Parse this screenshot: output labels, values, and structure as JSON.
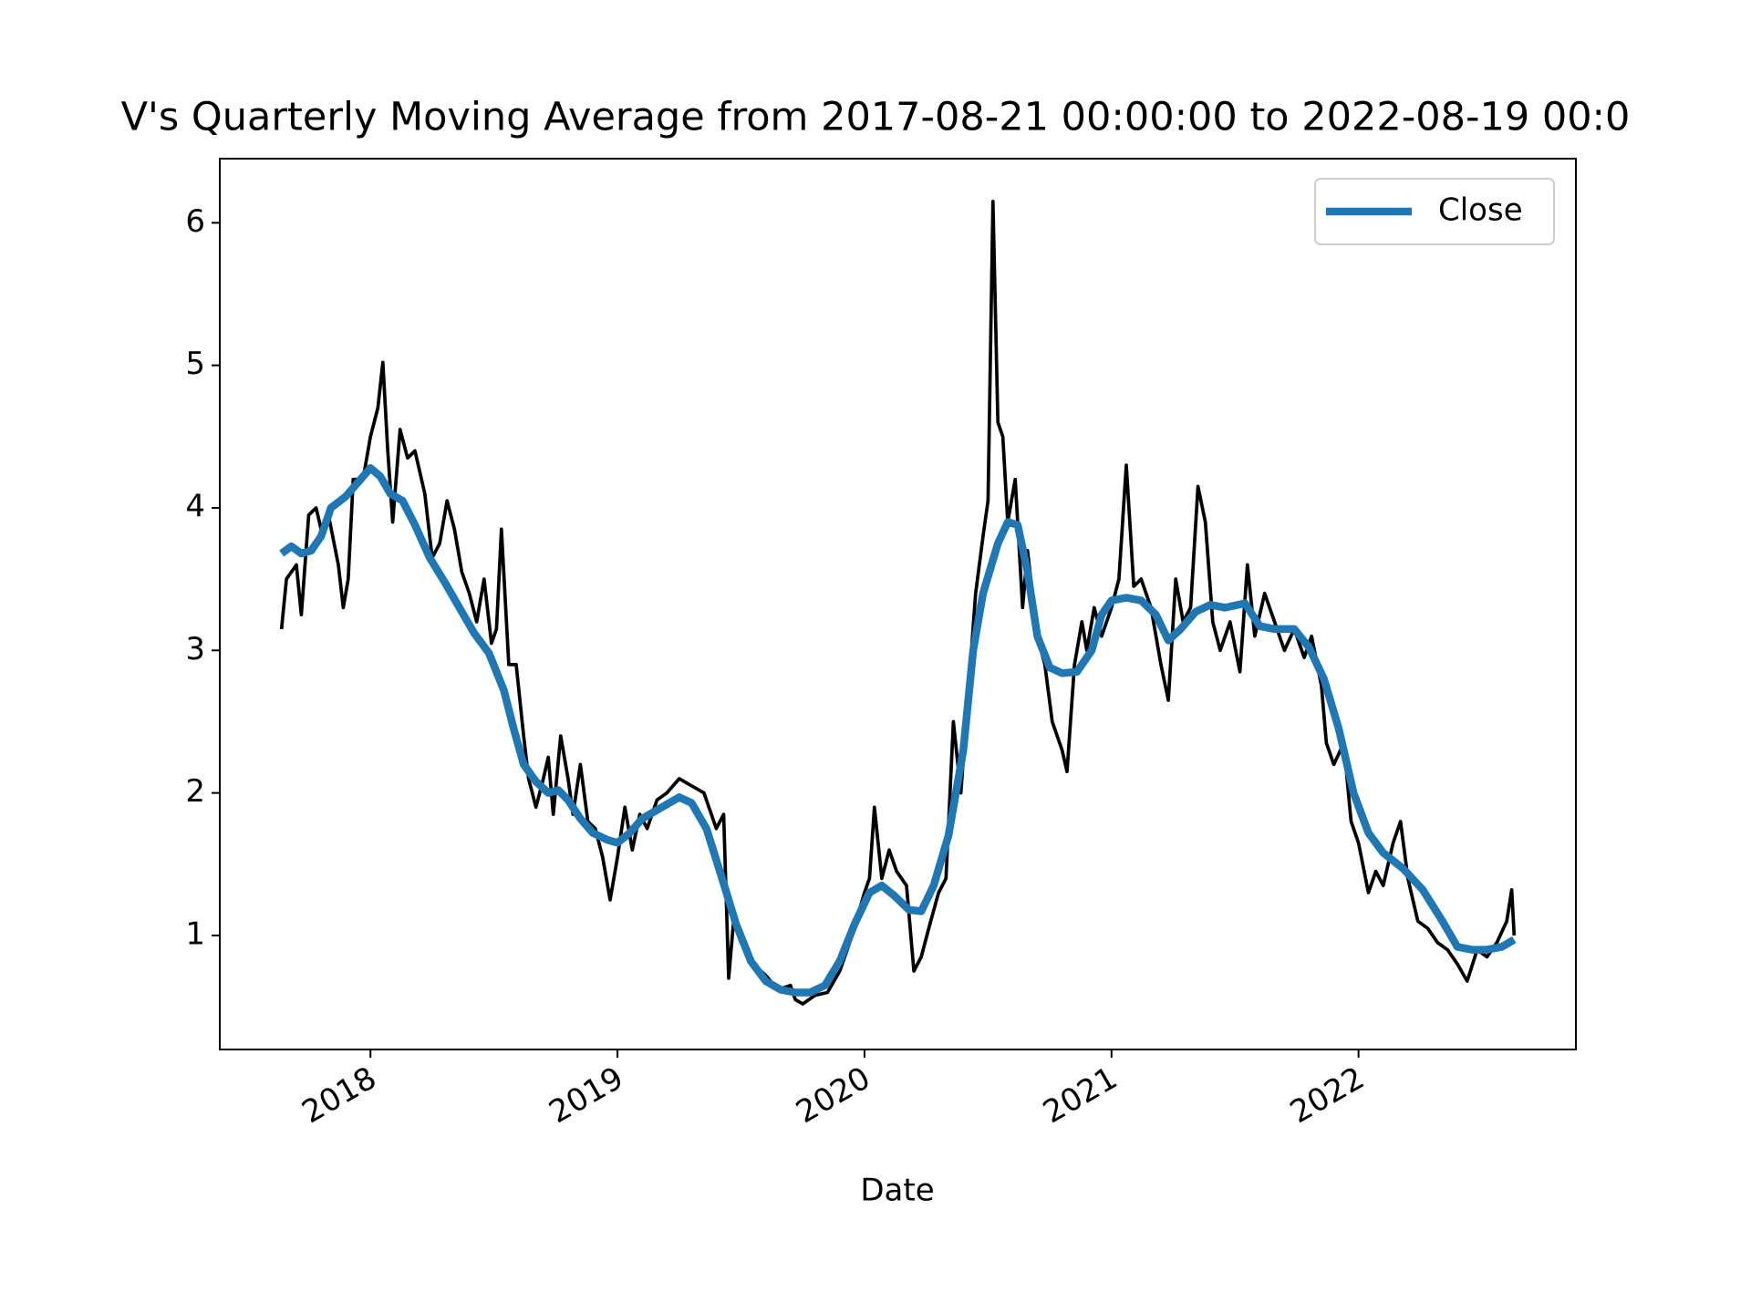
{
  "chart_data": {
    "type": "line",
    "title": "V's Quarterly Moving Average from 2017-08-21 00:00:00 to 2022-08-19 00:0",
    "xlabel": "Date",
    "xlim": [
      2017.39,
      2022.88
    ],
    "xticks": [
      2018,
      2019,
      2020,
      2021,
      2022
    ],
    "ylim": [
      0.2,
      6.45
    ],
    "yticks": [
      1,
      2,
      3,
      4,
      5,
      6
    ],
    "legend": "upper right",
    "series": [
      {
        "color": "#000000",
        "x": [
          2017.64,
          2017.66,
          2017.7,
          2017.72,
          2017.75,
          2017.78,
          2017.8,
          2017.83,
          2017.87,
          2017.89,
          2017.91,
          2017.93,
          2017.97,
          2018.0,
          2018.03,
          2018.05,
          2018.07,
          2018.09,
          2018.12,
          2018.15,
          2018.18,
          2018.22,
          2018.25,
          2018.28,
          2018.31,
          2018.34,
          2018.37,
          2018.4,
          2018.43,
          2018.46,
          2018.49,
          2018.51,
          2018.53,
          2018.56,
          2018.59,
          2018.62,
          2018.64,
          2018.67,
          2018.7,
          2018.72,
          2018.74,
          2018.77,
          2018.8,
          2018.82,
          2018.85,
          2018.88,
          2018.91,
          2018.94,
          2018.97,
          2019.0,
          2019.03,
          2019.06,
          2019.09,
          2019.12,
          2019.16,
          2019.2,
          2019.25,
          2019.3,
          2019.35,
          2019.4,
          2019.43,
          2019.45,
          2019.47,
          2019.5,
          2019.55,
          2019.6,
          2019.65,
          2019.7,
          2019.72,
          2019.75,
          2019.8,
          2019.85,
          2019.9,
          2019.95,
          2020.0,
          2020.02,
          2020.04,
          2020.07,
          2020.1,
          2020.13,
          2020.17,
          2020.2,
          2020.23,
          2020.26,
          2020.3,
          2020.33,
          2020.36,
          2020.39,
          2020.42,
          2020.45,
          2020.48,
          2020.5,
          2020.52,
          2020.54,
          2020.56,
          2020.58,
          2020.61,
          2020.64,
          2020.66,
          2020.7,
          2020.73,
          2020.76,
          2020.8,
          2020.82,
          2020.85,
          2020.88,
          2020.9,
          2020.93,
          2020.96,
          2021.0,
          2021.03,
          2021.06,
          2021.09,
          2021.12,
          2021.16,
          2021.2,
          2021.23,
          2021.26,
          2021.29,
          2021.32,
          2021.35,
          2021.38,
          2021.41,
          2021.44,
          2021.48,
          2021.52,
          2021.55,
          2021.58,
          2021.62,
          2021.66,
          2021.7,
          2021.74,
          2021.78,
          2021.81,
          2021.85,
          2021.87,
          2021.9,
          2021.94,
          2021.97,
          2022.0,
          2022.04,
          2022.07,
          2022.1,
          2022.14,
          2022.17,
          2022.2,
          2022.24,
          2022.28,
          2022.32,
          2022.36,
          2022.4,
          2022.44,
          2022.48,
          2022.52,
          2022.56,
          2022.6,
          2022.62,
          2022.63
        ],
        "values": [
          3.15,
          3.5,
          3.6,
          3.25,
          3.95,
          4.0,
          3.85,
          3.95,
          3.6,
          3.3,
          3.5,
          4.2,
          4.2,
          4.5,
          4.7,
          5.02,
          4.4,
          3.9,
          4.55,
          4.35,
          4.4,
          4.1,
          3.65,
          3.75,
          4.05,
          3.85,
          3.55,
          3.4,
          3.2,
          3.5,
          3.05,
          3.15,
          3.85,
          2.9,
          2.9,
          2.4,
          2.1,
          1.9,
          2.1,
          2.25,
          1.85,
          2.4,
          2.1,
          1.85,
          2.2,
          1.8,
          1.75,
          1.55,
          1.25,
          1.55,
          1.9,
          1.6,
          1.85,
          1.75,
          1.95,
          2.0,
          2.1,
          2.05,
          2.0,
          1.75,
          1.85,
          0.7,
          1.1,
          0.95,
          0.8,
          0.72,
          0.62,
          0.65,
          0.55,
          0.52,
          0.58,
          0.6,
          0.75,
          1.0,
          1.3,
          1.4,
          1.9,
          1.4,
          1.6,
          1.45,
          1.35,
          0.75,
          0.85,
          1.05,
          1.3,
          1.4,
          2.5,
          2.0,
          2.7,
          3.4,
          3.8,
          4.05,
          6.15,
          4.6,
          4.5,
          3.9,
          4.2,
          3.3,
          3.7,
          3.1,
          2.9,
          2.5,
          2.3,
          2.15,
          2.9,
          3.2,
          3.0,
          3.3,
          3.1,
          3.3,
          3.5,
          4.3,
          3.45,
          3.5,
          3.3,
          2.9,
          2.65,
          3.5,
          3.2,
          3.3,
          4.15,
          3.9,
          3.2,
          3.0,
          3.2,
          2.85,
          3.6,
          3.1,
          3.4,
          3.2,
          3.0,
          3.15,
          2.95,
          3.1,
          2.75,
          2.35,
          2.2,
          2.35,
          1.8,
          1.65,
          1.3,
          1.45,
          1.35,
          1.65,
          1.8,
          1.4,
          1.1,
          1.05,
          0.95,
          0.9,
          0.8,
          0.68,
          0.9,
          0.85,
          0.95,
          1.1,
          1.32,
          1.0
        ]
      },
      {
        "name": "Close",
        "color": "#1f77b4",
        "x": [
          2017.64,
          2017.68,
          2017.72,
          2017.76,
          2017.8,
          2017.84,
          2017.9,
          2017.96,
          2018.0,
          2018.04,
          2018.08,
          2018.13,
          2018.18,
          2018.24,
          2018.3,
          2018.36,
          2018.42,
          2018.48,
          2018.54,
          2018.58,
          2018.62,
          2018.67,
          2018.72,
          2018.76,
          2018.8,
          2018.85,
          2018.9,
          2018.96,
          2019.0,
          2019.05,
          2019.1,
          2019.18,
          2019.25,
          2019.3,
          2019.36,
          2019.42,
          2019.48,
          2019.54,
          2019.6,
          2019.66,
          2019.72,
          2019.78,
          2019.84,
          2019.9,
          2019.96,
          2020.02,
          2020.07,
          2020.12,
          2020.18,
          2020.23,
          2020.28,
          2020.34,
          2020.4,
          2020.44,
          2020.48,
          2020.54,
          2020.58,
          2020.62,
          2020.66,
          2020.7,
          2020.75,
          2020.8,
          2020.86,
          2020.92,
          2020.96,
          2021.0,
          2021.06,
          2021.12,
          2021.18,
          2021.23,
          2021.28,
          2021.34,
          2021.4,
          2021.46,
          2021.54,
          2021.6,
          2021.66,
          2021.74,
          2021.8,
          2021.86,
          2021.92,
          2021.98,
          2022.04,
          2022.1,
          2022.18,
          2022.26,
          2022.34,
          2022.4,
          2022.46,
          2022.52,
          2022.58,
          2022.63
        ],
        "values": [
          3.68,
          3.73,
          3.68,
          3.7,
          3.8,
          4.0,
          4.08,
          4.2,
          4.28,
          4.22,
          4.1,
          4.05,
          3.88,
          3.65,
          3.48,
          3.3,
          3.12,
          2.98,
          2.72,
          2.45,
          2.2,
          2.08,
          2.0,
          2.02,
          1.95,
          1.82,
          1.72,
          1.67,
          1.65,
          1.72,
          1.82,
          1.9,
          1.97,
          1.93,
          1.75,
          1.42,
          1.08,
          0.82,
          0.68,
          0.62,
          0.6,
          0.6,
          0.65,
          0.82,
          1.08,
          1.3,
          1.35,
          1.28,
          1.18,
          1.17,
          1.35,
          1.7,
          2.3,
          3.0,
          3.4,
          3.75,
          3.9,
          3.88,
          3.55,
          3.1,
          2.88,
          2.84,
          2.85,
          3.0,
          3.25,
          3.35,
          3.37,
          3.35,
          3.25,
          3.07,
          3.15,
          3.27,
          3.32,
          3.3,
          3.33,
          3.17,
          3.15,
          3.15,
          3.02,
          2.8,
          2.45,
          2.0,
          1.72,
          1.58,
          1.47,
          1.32,
          1.1,
          0.92,
          0.9,
          0.9,
          0.92,
          0.97
        ]
      }
    ]
  }
}
